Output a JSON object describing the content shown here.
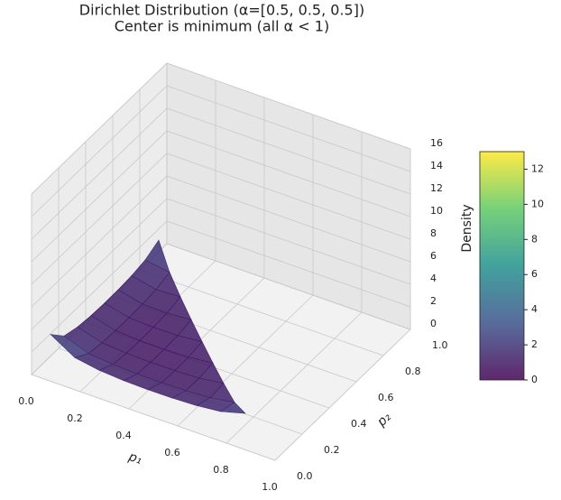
{
  "chart_data": {
    "type": "surface3d",
    "title": "Dirichlet Distribution (α=[0.5, 0.5, 0.5])",
    "subtitle": "Center is minimum (all α < 1)",
    "xlabel": "p₁",
    "ylabel": "p₂",
    "zlabel": "Density",
    "x": [
      0.05,
      0.15,
      0.25,
      0.35,
      0.45,
      0.55,
      0.65,
      0.75,
      0.85
    ],
    "y": [
      0.05,
      0.15,
      0.25,
      0.35,
      0.45,
      0.55,
      0.65,
      0.75,
      0.85
    ],
    "z": [
      [
        3.36,
        2.06,
        1.7,
        1.55,
        1.5,
        1.52,
        1.61,
        1.84,
        2.44
      ],
      [
        2.06,
        1.27,
        1.06,
        0.98,
        0.97,
        1.01,
        1.14,
        1.5,
        null
      ],
      [
        1.7,
        1.06,
        0.9,
        0.85,
        0.87,
        0.96,
        1.25,
        null,
        null
      ],
      [
        1.55,
        0.98,
        0.85,
        0.83,
        0.9,
        1.15,
        null,
        null,
        null
      ],
      [
        1.5,
        0.97,
        0.87,
        0.9,
        1.12,
        null,
        null,
        null,
        null
      ],
      [
        1.52,
        1.01,
        0.96,
        1.15,
        null,
        null,
        null,
        null,
        null
      ],
      [
        1.61,
        1.14,
        1.25,
        null,
        null,
        null,
        null,
        null,
        null
      ],
      [
        1.84,
        1.5,
        null,
        null,
        null,
        null,
        null,
        null,
        null
      ],
      [
        2.44,
        null,
        null,
        null,
        null,
        null,
        null,
        null,
        null
      ]
    ],
    "xlim": [
      0,
      1
    ],
    "ylim": [
      0,
      1
    ],
    "zlim": [
      0,
      16
    ],
    "xticks": [
      {
        "value": 0,
        "label": "0.0"
      },
      0.2,
      0.4,
      0.6,
      0.8,
      {
        "value": 1,
        "label": "1.0"
      }
    ],
    "yticks": [
      {
        "value": 0,
        "label": "0.0"
      },
      0.2,
      0.4,
      0.6,
      0.8,
      {
        "value": 1,
        "label": "1.0"
      }
    ],
    "zticks": [
      0,
      2,
      4,
      6,
      8,
      10,
      12,
      14,
      16
    ],
    "colormap": "viridis",
    "clim": [
      0,
      13
    ],
    "cticks": [
      0,
      2,
      4,
      6,
      8,
      10,
      12
    ],
    "grid": true
  }
}
